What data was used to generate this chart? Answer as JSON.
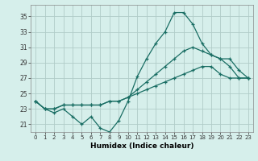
{
  "title": "",
  "xlabel": "Humidex (Indice chaleur)",
  "ylabel": "",
  "background_color": "#d6efeb",
  "grid_color": "#b0ccc8",
  "line_color": "#1a6e64",
  "x": [
    0,
    1,
    2,
    3,
    4,
    5,
    6,
    7,
    8,
    9,
    10,
    11,
    12,
    13,
    14,
    15,
    16,
    17,
    18,
    19,
    20,
    21,
    22,
    23
  ],
  "line1": [
    24.0,
    23.0,
    22.5,
    23.0,
    22.0,
    21.0,
    22.0,
    20.5,
    20.0,
    21.5,
    24.0,
    27.2,
    29.5,
    31.5,
    33.0,
    35.5,
    35.5,
    34.0,
    31.5,
    30.0,
    29.5,
    28.5,
    27.0,
    27.0
  ],
  "line2": [
    24.0,
    23.0,
    23.0,
    23.5,
    23.5,
    23.5,
    23.5,
    23.5,
    24.0,
    24.0,
    24.5,
    25.0,
    25.5,
    26.0,
    26.5,
    27.0,
    27.5,
    28.0,
    28.5,
    28.5,
    27.5,
    27.0,
    27.0,
    27.0
  ],
  "line3": [
    24.0,
    23.0,
    23.0,
    23.5,
    23.5,
    23.5,
    23.5,
    23.5,
    24.0,
    24.0,
    24.5,
    25.5,
    26.5,
    27.5,
    28.5,
    29.5,
    30.5,
    31.0,
    30.5,
    30.0,
    29.5,
    29.5,
    28.0,
    27.0
  ],
  "yticks": [
    21,
    23,
    25,
    27,
    29,
    31,
    33,
    35
  ],
  "ylim": [
    20.0,
    36.5
  ],
  "xlim": [
    -0.5,
    23.5
  ]
}
